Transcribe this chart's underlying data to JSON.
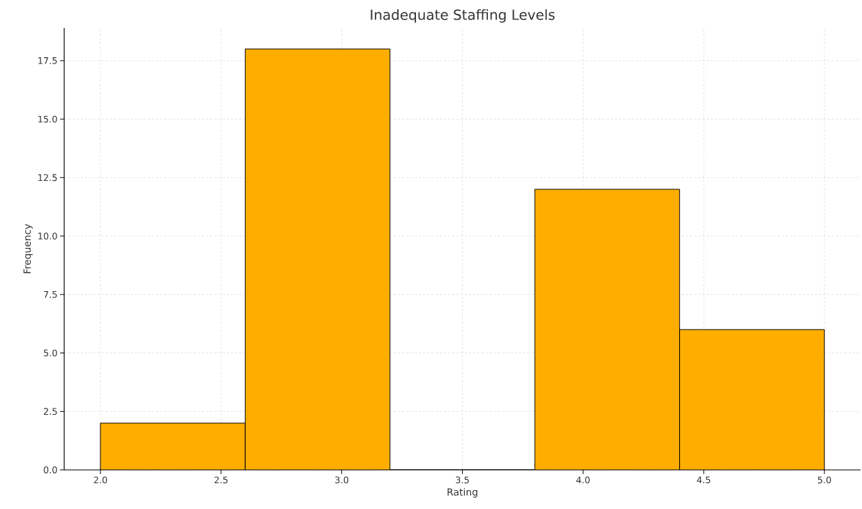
{
  "chart_data": {
    "type": "histogram",
    "title": "Inadequate Staffing Levels",
    "xlabel": "Rating",
    "ylabel": "Frequency",
    "bins": [
      2.0,
      2.6,
      3.2,
      3.8,
      4.4,
      5.0
    ],
    "values": [
      2,
      18,
      0,
      12,
      6
    ],
    "color": "#ffae00",
    "xlim": [
      1.85,
      5.15
    ],
    "ylim": [
      0,
      18.9
    ],
    "xticks": [
      {
        "value": 2.0,
        "label": "2.0"
      },
      {
        "value": 2.5,
        "label": "2.5"
      },
      {
        "value": 3.0,
        "label": "3.0"
      },
      {
        "value": 3.5,
        "label": "3.5"
      },
      {
        "value": 4.0,
        "label": "4.0"
      },
      {
        "value": 4.5,
        "label": "4.5"
      },
      {
        "value": 5.0,
        "label": "5.0"
      }
    ],
    "yticks": [
      {
        "value": 0,
        "label": "0.0"
      },
      {
        "value": 2.5,
        "label": "2.5"
      },
      {
        "value": 5,
        "label": "5.0"
      },
      {
        "value": 7.5,
        "label": "7.5"
      },
      {
        "value": 10,
        "label": "10.0"
      },
      {
        "value": 12.5,
        "label": "12.5"
      },
      {
        "value": 15,
        "label": "15.0"
      },
      {
        "value": 17.5,
        "label": "17.5"
      }
    ],
    "grid": true
  }
}
